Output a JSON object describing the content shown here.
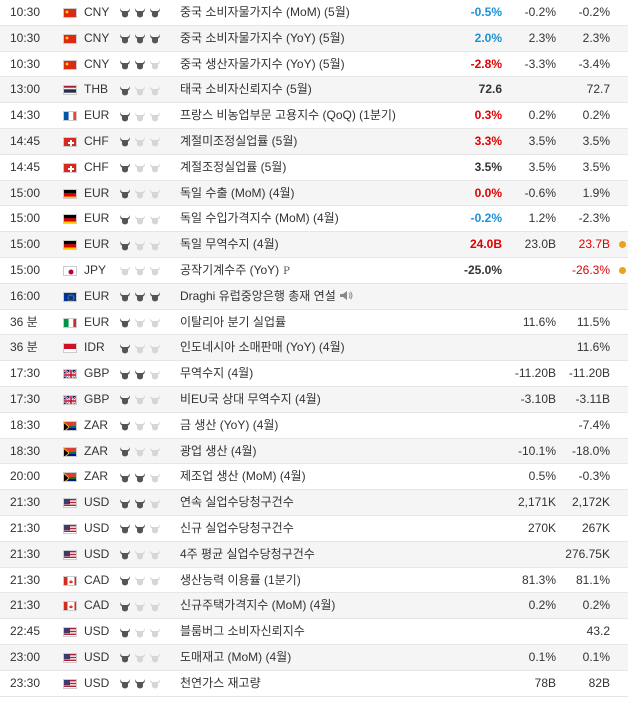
{
  "rows": [
    {
      "time": "10:30",
      "cur": "CNY",
      "flag": "cn",
      "imp": 3,
      "event": "중국 소비자물가지수 (MoM) (5월)",
      "actual": "-0.5%",
      "actual_color": "blue",
      "forecast": "-0.2%",
      "previous": "-0.2%"
    },
    {
      "time": "10:30",
      "cur": "CNY",
      "flag": "cn",
      "imp": 3,
      "event": "중국 소비자물가지수 (YoY) (5월)",
      "actual": "2.0%",
      "actual_color": "blue",
      "forecast": "2.3%",
      "previous": "2.3%"
    },
    {
      "time": "10:30",
      "cur": "CNY",
      "flag": "cn",
      "imp": 2,
      "event": "중국 생산자물가지수 (YoY) (5월)",
      "actual": "-2.8%",
      "actual_color": "red",
      "forecast": "-3.3%",
      "previous": "-3.4%"
    },
    {
      "time": "13:00",
      "cur": "THB",
      "flag": "th",
      "imp": 1,
      "event": "태국 소비자신뢰지수 (5월)",
      "actual": "72.6",
      "actual_color": "black",
      "forecast": "",
      "previous": "72.7"
    },
    {
      "time": "14:30",
      "cur": "EUR",
      "flag": "fr",
      "imp": 1,
      "event": "프랑스 비농업부문 고용지수 (QoQ) (1분기)",
      "actual": "0.3%",
      "actual_color": "red",
      "forecast": "0.2%",
      "previous": "0.2%"
    },
    {
      "time": "14:45",
      "cur": "CHF",
      "flag": "ch",
      "imp": 1,
      "event": "계절미조정실업률 (5월)",
      "actual": "3.3%",
      "actual_color": "red",
      "forecast": "3.5%",
      "previous": "3.5%"
    },
    {
      "time": "14:45",
      "cur": "CHF",
      "flag": "ch",
      "imp": 1,
      "event": "계절조정실업률 (5월)",
      "actual": "3.5%",
      "actual_color": "black",
      "forecast": "3.5%",
      "previous": "3.5%"
    },
    {
      "time": "15:00",
      "cur": "EUR",
      "flag": "de",
      "imp": 1,
      "event": "독일 수출 (MoM) (4월)",
      "actual": "0.0%",
      "actual_color": "red",
      "forecast": "-0.6%",
      "previous": "1.9%"
    },
    {
      "time": "15:00",
      "cur": "EUR",
      "flag": "de",
      "imp": 1,
      "event": "독일 수입가격지수 (MoM) (4월)",
      "actual": "-0.2%",
      "actual_color": "blue",
      "forecast": "1.2%",
      "previous": "-2.3%"
    },
    {
      "time": "15:00",
      "cur": "EUR",
      "flag": "de",
      "imp": 1,
      "event": "독일 무역수지 (4월)",
      "actual": "24.0B",
      "actual_color": "red",
      "forecast": "23.0B",
      "previous": "23.7B",
      "previous_color": "red",
      "dot": true
    },
    {
      "time": "15:00",
      "cur": "JPY",
      "flag": "jp",
      "imp": 0,
      "event": "공작기계수주 (YoY)",
      "p_icon": "P",
      "actual": "-25.0%",
      "actual_color": "black",
      "forecast": "",
      "previous": "-26.3%",
      "previous_color": "red",
      "dot": true
    },
    {
      "time": "16:00",
      "cur": "EUR",
      "flag": "eu",
      "imp": 3,
      "event": "Draghi 유럽중앙은행 총재 연설",
      "speech": true,
      "actual": "",
      "forecast": "",
      "previous": ""
    },
    {
      "time": "36 분",
      "cur": "EUR",
      "flag": "it",
      "imp": 1,
      "event": "이탈리아 분기 실업률",
      "actual": "",
      "forecast": "11.6%",
      "previous": "11.5%"
    },
    {
      "time": "36 분",
      "cur": "IDR",
      "flag": "id",
      "imp": 1,
      "event": "인도네시아 소매판매 (YoY) (4월)",
      "actual": "",
      "forecast": "",
      "previous": "11.6%"
    },
    {
      "time": "17:30",
      "cur": "GBP",
      "flag": "gb",
      "imp": 2,
      "event": "무역수지 (4월)",
      "actual": "",
      "forecast": "-11.20B",
      "previous": "-11.20B"
    },
    {
      "time": "17:30",
      "cur": "GBP",
      "flag": "gb",
      "imp": 1,
      "event": "비EU국 상대 무역수지 (4월)",
      "actual": "",
      "forecast": "-3.10B",
      "previous": "-3.11B"
    },
    {
      "time": "18:30",
      "cur": "ZAR",
      "flag": "za",
      "imp": 1,
      "event": "금 생산 (YoY) (4월)",
      "actual": "",
      "forecast": "",
      "previous": "-7.4%"
    },
    {
      "time": "18:30",
      "cur": "ZAR",
      "flag": "za",
      "imp": 1,
      "event": "광업 생산 (4월)",
      "actual": "",
      "forecast": "-10.1%",
      "previous": "-18.0%"
    },
    {
      "time": "20:00",
      "cur": "ZAR",
      "flag": "za",
      "imp": 2,
      "event": "제조업 생산 (MoM) (4월)",
      "actual": "",
      "forecast": "0.5%",
      "previous": "-0.3%"
    },
    {
      "time": "21:30",
      "cur": "USD",
      "flag": "us",
      "imp": 2,
      "event": "연속 실업수당청구건수",
      "actual": "",
      "forecast": "2,171K",
      "previous": "2,172K"
    },
    {
      "time": "21:30",
      "cur": "USD",
      "flag": "us",
      "imp": 2,
      "event": "신규 실업수당청구건수",
      "actual": "",
      "forecast": "270K",
      "previous": "267K"
    },
    {
      "time": "21:30",
      "cur": "USD",
      "flag": "us",
      "imp": 1,
      "event": "4주 평균 실업수당청구건수",
      "actual": "",
      "forecast": "",
      "previous": "276.75K"
    },
    {
      "time": "21:30",
      "cur": "CAD",
      "flag": "ca",
      "imp": 1,
      "event": "생산능력 이용률 (1분기)",
      "actual": "",
      "forecast": "81.3%",
      "previous": "81.1%"
    },
    {
      "time": "21:30",
      "cur": "CAD",
      "flag": "ca",
      "imp": 1,
      "event": "신규주택가격지수 (MoM) (4월)",
      "actual": "",
      "forecast": "0.2%",
      "previous": "0.2%"
    },
    {
      "time": "22:45",
      "cur": "USD",
      "flag": "us",
      "imp": 1,
      "event": "블룸버그 소비자신뢰지수",
      "actual": "",
      "forecast": "",
      "previous": "43.2"
    },
    {
      "time": "23:00",
      "cur": "USD",
      "flag": "us",
      "imp": 1,
      "event": "도매재고 (MoM) (4월)",
      "actual": "",
      "forecast": "0.1%",
      "previous": "0.1%"
    },
    {
      "time": "23:30",
      "cur": "USD",
      "flag": "us",
      "imp": 2,
      "event": "천연가스 재고량",
      "actual": "",
      "forecast": "78B",
      "previous": "82B"
    }
  ],
  "icons": {
    "importance": "bull-icon",
    "speech": "speaker-icon",
    "preliminary": "p-icon",
    "alert": "alert-dot-icon"
  }
}
